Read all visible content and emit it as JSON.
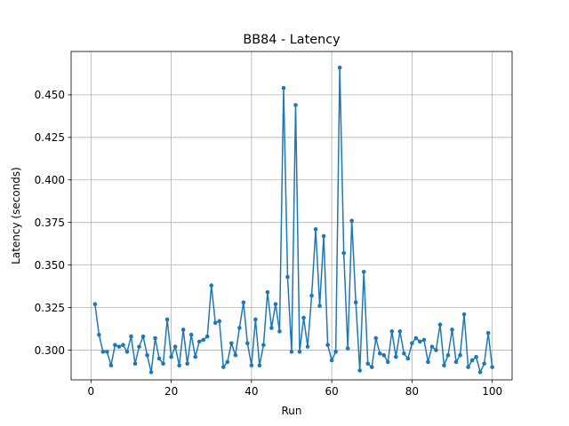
{
  "chart_data": {
    "type": "line",
    "title": "BB84 - Latency",
    "xlabel": "Run",
    "ylabel": "Latency (seconds)",
    "xlim": [
      -4.95,
      104.95
    ],
    "ylim": [
      0.2825,
      0.4755
    ],
    "xticks": [
      0,
      20,
      40,
      60,
      80,
      100
    ],
    "yticks": [
      0.3,
      0.325,
      0.35,
      0.375,
      0.4,
      0.425,
      0.45
    ],
    "ytick_labels": [
      "0.300",
      "0.325",
      "0.350",
      "0.375",
      "0.400",
      "0.425",
      "0.450"
    ],
    "grid": true,
    "line_color": "#1f77b4",
    "marker": "circle",
    "series": [
      {
        "x": [
          1,
          2,
          3,
          4,
          5,
          6,
          7,
          8,
          9,
          10,
          11,
          12,
          13,
          14,
          15,
          16,
          17,
          18,
          19,
          20,
          21,
          22,
          23,
          24,
          25,
          26,
          27,
          28,
          29,
          30,
          31,
          32,
          33,
          34,
          35,
          36,
          37,
          38,
          39,
          40,
          41,
          42,
          43,
          44,
          45,
          46,
          47,
          48,
          49,
          50,
          51,
          52,
          53,
          54,
          55,
          56,
          57,
          58,
          59,
          60,
          61,
          62,
          63,
          64,
          65,
          66,
          67,
          68,
          69,
          70,
          71,
          72,
          73,
          74,
          75,
          76,
          77,
          78,
          79,
          80,
          81,
          82,
          83,
          84,
          85,
          86,
          87,
          88,
          89,
          90,
          91,
          92,
          93,
          94,
          95,
          96,
          97,
          98,
          99,
          100
        ],
        "y": [
          0.327,
          0.309,
          0.299,
          0.299,
          0.291,
          0.303,
          0.302,
          0.303,
          0.299,
          0.308,
          0.292,
          0.302,
          0.308,
          0.297,
          0.287,
          0.307,
          0.295,
          0.292,
          0.318,
          0.296,
          0.302,
          0.291,
          0.312,
          0.292,
          0.309,
          0.296,
          0.305,
          0.306,
          0.308,
          0.338,
          0.316,
          0.317,
          0.29,
          0.293,
          0.304,
          0.297,
          0.313,
          0.328,
          0.304,
          0.291,
          0.318,
          0.291,
          0.303,
          0.334,
          0.313,
          0.327,
          0.311,
          0.454,
          0.343,
          0.299,
          0.444,
          0.299,
          0.319,
          0.302,
          0.332,
          0.371,
          0.326,
          0.367,
          0.303,
          0.294,
          0.299,
          0.466,
          0.357,
          0.301,
          0.376,
          0.328,
          0.288,
          0.346,
          0.292,
          0.29,
          0.307,
          0.298,
          0.297,
          0.293,
          0.311,
          0.296,
          0.311,
          0.298,
          0.295,
          0.304,
          0.307,
          0.305,
          0.306,
          0.293,
          0.302,
          0.3,
          0.315,
          0.291,
          0.297,
          0.312,
          0.293,
          0.297,
          0.321,
          0.29,
          0.294,
          0.296,
          0.287,
          0.292,
          0.31,
          0.29
        ]
      }
    ]
  }
}
